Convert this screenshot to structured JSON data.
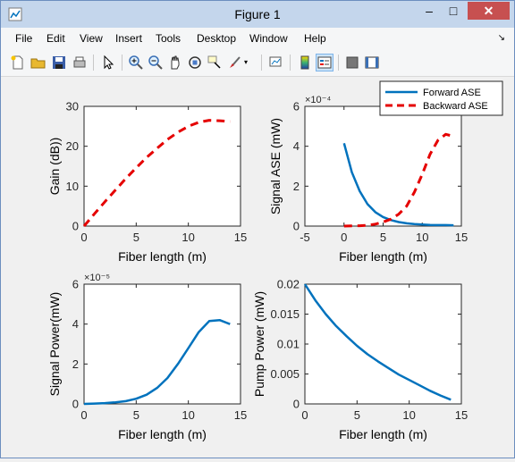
{
  "window": {
    "title": "Figure 1"
  },
  "menu": [
    "File",
    "Edit",
    "View",
    "Insert",
    "Tools",
    "Desktop",
    "Window",
    "Help"
  ],
  "toolbar_icons": [
    "new-figure-icon",
    "open-file-icon",
    "save-icon",
    "print-icon",
    "pointer-icon",
    "zoom-in-icon",
    "zoom-out-icon",
    "pan-icon",
    "rotate-3d-icon",
    "data-cursor-icon",
    "brush-icon",
    "brush-menu-icon",
    "link-plot-icon",
    "colorbar-icon",
    "legend-icon",
    "hide-plot-tools-icon",
    "show-plot-tools-icon"
  ],
  "colors": {
    "forward": "#0072BD",
    "backward": "#E50000",
    "title_bar": "#c4d6ec",
    "close_button": "#c75050"
  },
  "chart_data": [
    {
      "type": "line",
      "xlabel": "Fiber length (m)",
      "ylabel": "Gain (dB))",
      "xlim": [
        0,
        15
      ],
      "ylim": [
        0,
        30
      ],
      "xticks": [
        "0",
        "5",
        "10",
        "15"
      ],
      "yticks": [
        "0",
        "10",
        "20",
        "30"
      ],
      "series": [
        {
          "style": "dashed",
          "color": "#E50000",
          "x": [
            0,
            1,
            2,
            3,
            4,
            5,
            6,
            7,
            8,
            9,
            10,
            11,
            12,
            13,
            14
          ],
          "y": [
            0,
            3.1,
            6.1,
            9.0,
            11.9,
            14.6,
            17.2,
            19.5,
            21.7,
            23.5,
            25.0,
            26.0,
            26.5,
            26.4,
            26.2
          ]
        }
      ]
    },
    {
      "type": "line",
      "xlabel": "Fiber length (m)",
      "ylabel": "Signal ASE (mW)",
      "exponent": "×10⁻⁴",
      "xlim": [
        -5,
        15
      ],
      "ylim": [
        0,
        6
      ],
      "xticks": [
        "-5",
        "0",
        "5",
        "10",
        "15"
      ],
      "yticks": [
        "0",
        "2",
        "4",
        "6"
      ],
      "legend": {
        "location": "top-right",
        "entries": [
          "Forward ASE",
          "Backward ASE"
        ]
      },
      "series": [
        {
          "name": "Forward ASE",
          "style": "solid",
          "color": "#0072BD",
          "x": [
            0,
            1,
            2,
            3,
            4,
            5,
            6,
            7,
            8,
            9,
            10,
            11,
            12,
            13,
            14
          ],
          "y": [
            4.15,
            2.7,
            1.75,
            1.1,
            0.7,
            0.45,
            0.3,
            0.2,
            0.14,
            0.1,
            0.08,
            0.06,
            0.05,
            0.05,
            0.04
          ]
        },
        {
          "name": "Backward ASE",
          "style": "dashed",
          "color": "#E50000",
          "x": [
            0,
            1,
            2,
            3,
            4,
            5,
            6,
            7,
            8,
            9,
            10,
            11,
            12,
            13,
            14
          ],
          "y": [
            0,
            0.01,
            0.02,
            0.04,
            0.1,
            0.2,
            0.35,
            0.6,
            1.0,
            1.7,
            2.6,
            3.6,
            4.3,
            4.6,
            4.5
          ]
        }
      ]
    },
    {
      "type": "line",
      "xlabel": "Fiber length (m)",
      "ylabel": "Signal Power(mW)",
      "exponent": "×10⁻⁵",
      "xlim": [
        0,
        15
      ],
      "ylim": [
        0,
        6
      ],
      "xticks": [
        "0",
        "5",
        "10",
        "15"
      ],
      "yticks": [
        "0",
        "2",
        "4",
        "6"
      ],
      "series": [
        {
          "style": "solid",
          "color": "#0072BD",
          "x": [
            0,
            1,
            2,
            3,
            4,
            5,
            6,
            7,
            8,
            9,
            10,
            11,
            12,
            13,
            14
          ],
          "y": [
            0,
            0.02,
            0.04,
            0.08,
            0.14,
            0.26,
            0.46,
            0.8,
            1.3,
            2.0,
            2.8,
            3.6,
            4.15,
            4.2,
            4.0
          ]
        }
      ]
    },
    {
      "type": "line",
      "xlabel": "Fiber length (m)",
      "ylabel": "Pump Power (mW)",
      "xlim": [
        0,
        15
      ],
      "ylim": [
        0,
        0.02
      ],
      "xticks": [
        "0",
        "5",
        "10",
        "15"
      ],
      "yticks": [
        "0",
        "0.005",
        "0.01",
        "0.015",
        "0.02"
      ],
      "series": [
        {
          "style": "solid",
          "color": "#0072BD",
          "x": [
            0,
            1,
            2,
            3,
            4,
            5,
            6,
            7,
            8,
            9,
            10,
            11,
            12,
            13,
            14
          ],
          "y": [
            0.02,
            0.0173,
            0.015,
            0.013,
            0.0113,
            0.0097,
            0.0083,
            0.0071,
            0.006,
            0.0049,
            0.004,
            0.0031,
            0.0022,
            0.0014,
            0.0007
          ]
        }
      ]
    }
  ]
}
